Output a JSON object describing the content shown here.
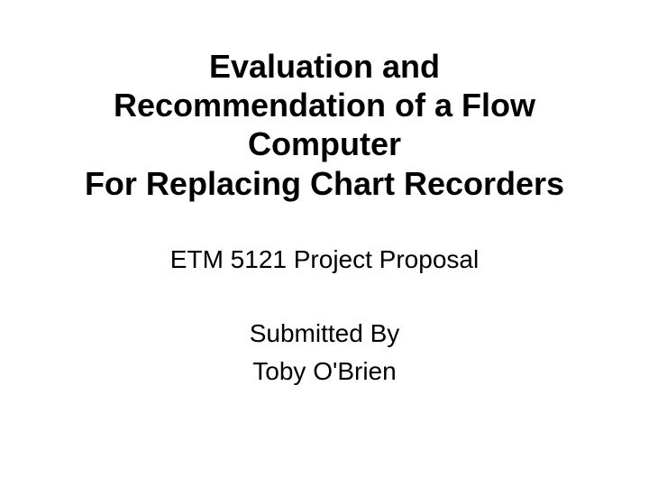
{
  "slide": {
    "title_line1": "Evaluation and",
    "title_line2": "Recommendation of a Flow",
    "title_line3": "Computer",
    "title_line4": "For Replacing Chart Recorders",
    "subtitle_line1": "ETM 5121 Project Proposal",
    "subtitle_line2": "Submitted By",
    "subtitle_line3": "Toby O'Brien",
    "title_fontsize": 36,
    "subtitle_fontsize": 28,
    "title_color": "#000000",
    "subtitle_color": "#000000",
    "background_color": "#ffffff",
    "font_family": "Arial"
  }
}
